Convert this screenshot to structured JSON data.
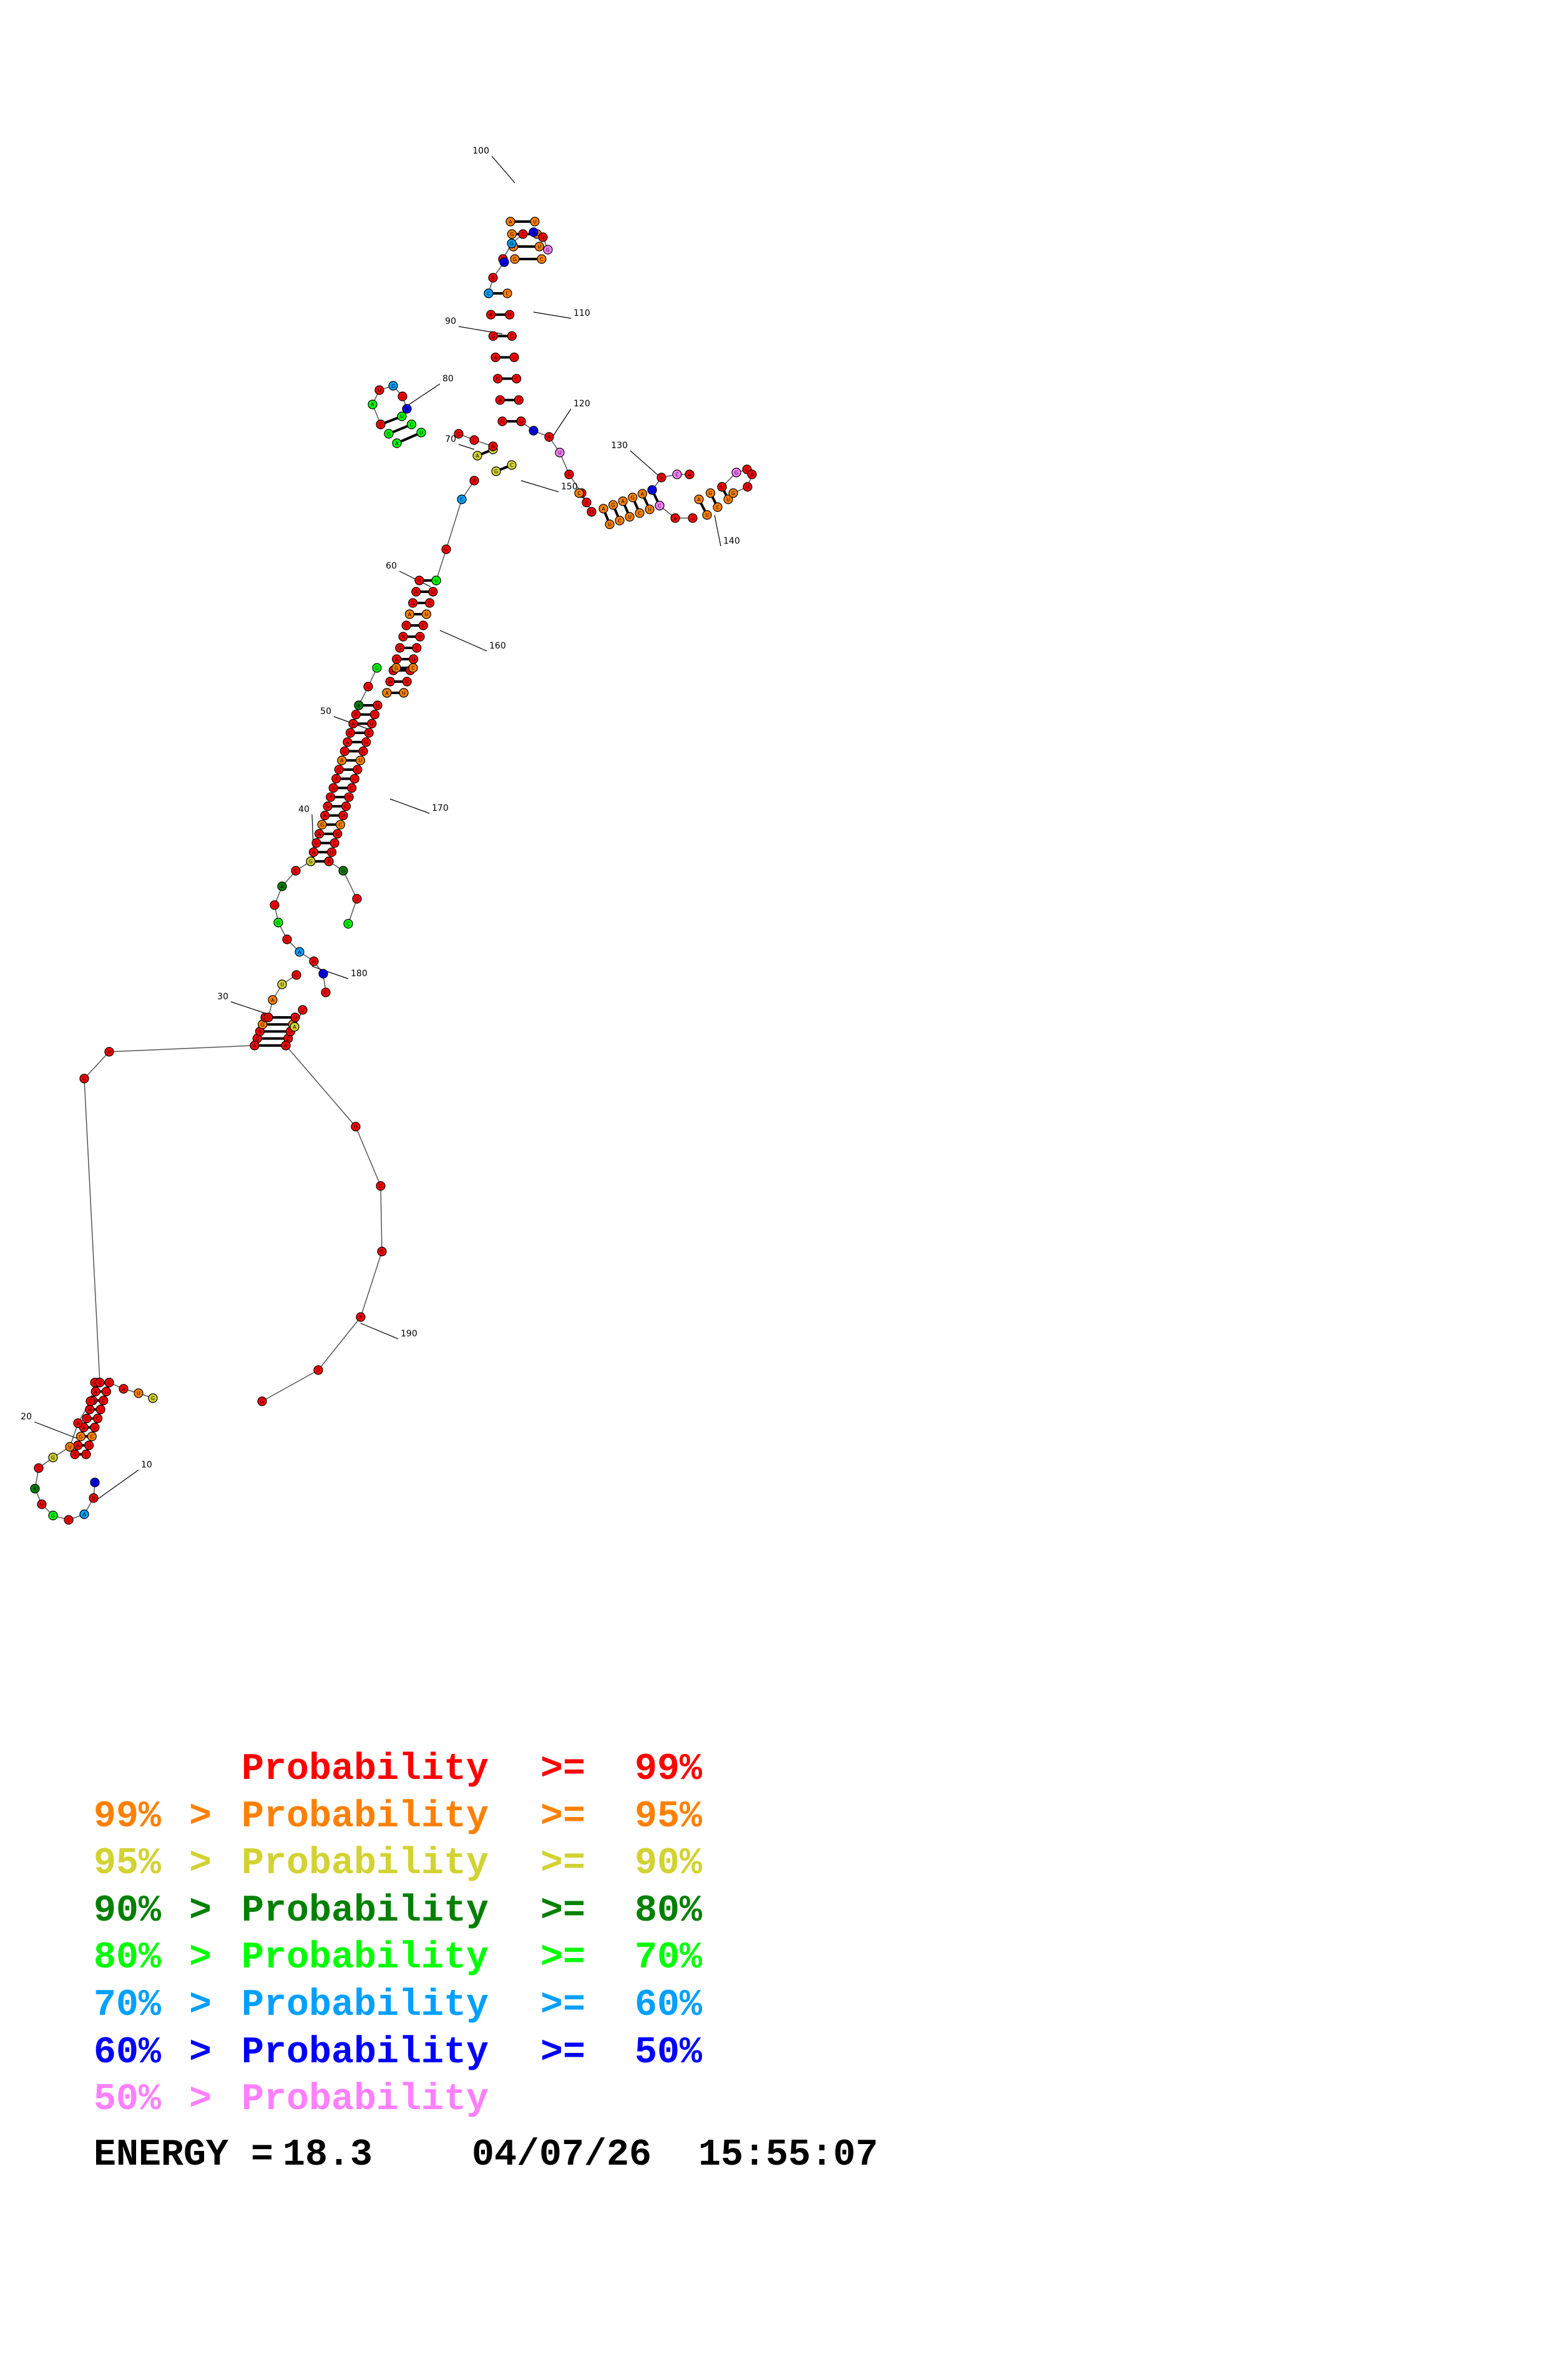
{
  "structure": {
    "position_labels": [
      "10",
      "20",
      "30",
      "40",
      "50",
      "60",
      "70",
      "80",
      "90",
      "100",
      "110",
      "120",
      "130",
      "140",
      "150",
      "160",
      "170",
      "180",
      "190"
    ],
    "probability_colors": {
      "p99": "#ff0000",
      "p95": "#ff8000",
      "p90": "#d2d232",
      "p80": "#008000",
      "p70": "#00ff00",
      "p60": "#00a0ff",
      "p50": "#0000ff",
      "p0": "#ff80ff"
    }
  },
  "legend": {
    "rows": [
      {
        "lower": "",
        "op1": "",
        "word": "Probability",
        "op2": ">=",
        "upper": "99%",
        "color": "#ff0000"
      },
      {
        "lower": "99%",
        "op1": ">",
        "word": "Probability",
        "op2": ">=",
        "upper": "95%",
        "color": "#ff8000"
      },
      {
        "lower": "95%",
        "op1": ">",
        "word": "Probability",
        "op2": ">=",
        "upper": "90%",
        "color": "#d2d232"
      },
      {
        "lower": "90%",
        "op1": ">",
        "word": "Probability",
        "op2": ">=",
        "upper": "80%",
        "color": "#008000"
      },
      {
        "lower": "80%",
        "op1": ">",
        "word": "Probability",
        "op2": ">=",
        "upper": "70%",
        "color": "#00ff00"
      },
      {
        "lower": "70%",
        "op1": ">",
        "word": "Probability",
        "op2": ">=",
        "upper": "60%",
        "color": "#00a0ff"
      },
      {
        "lower": "60%",
        "op1": ">",
        "word": "Probability",
        "op2": ">=",
        "upper": "50%",
        "color": "#0000ff"
      },
      {
        "lower": "50%",
        "op1": ">",
        "word": "Probability",
        "op2": "",
        "upper": "",
        "color": "#ff80ff"
      }
    ]
  },
  "footer": {
    "energy_label": "ENERGY =",
    "energy_value": "18.3",
    "date": "04/07/26",
    "time": "15:55:07"
  }
}
